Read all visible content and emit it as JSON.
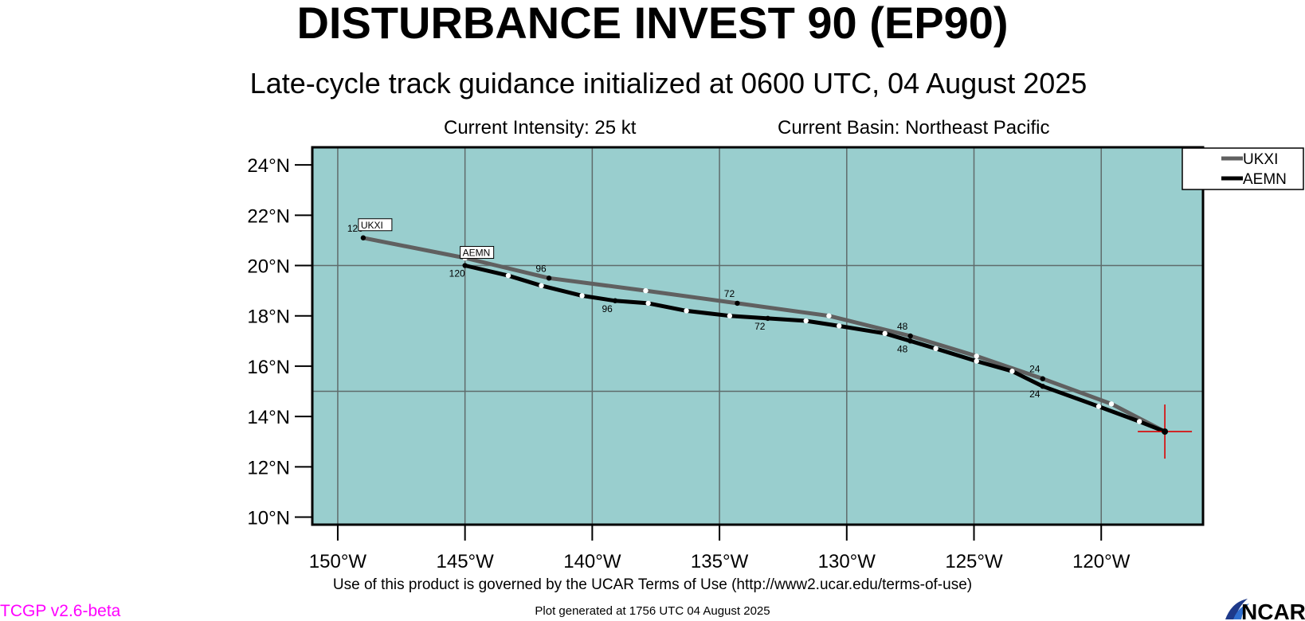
{
  "header": {
    "title": "DISTURBANCE INVEST 90 (EP90)",
    "subtitle": "Late-cycle track guidance initialized at 0600 UTC, 04 August 2025",
    "intensity": "Current Intensity: 25 kt",
    "basin": "Current Basin: Northeast Pacific"
  },
  "footer": {
    "terms": "Use of this product is governed by the UCAR Terms of Use (http://www2.ucar.edu/terms-of-use)",
    "generated": "Plot generated at 1756 UTC   04 August 2025",
    "version": "TCGP v2.6-beta",
    "logo_text": "NCAR"
  },
  "colors": {
    "ocean": "#99cece",
    "grid": "#5f6b6b",
    "ukxi": "#606060",
    "aemn": "#000000",
    "storm_marker": "#dd0000",
    "version_text": "#ff00ff"
  },
  "chart_data": {
    "type": "line",
    "xlabel": "",
    "ylabel": "",
    "xlim": [
      -151.0,
      -116.0
    ],
    "ylim": [
      9.7,
      24.7
    ],
    "x_ticks": [
      {
        "value": -150,
        "label": "150°W"
      },
      {
        "value": -145,
        "label": "145°W"
      },
      {
        "value": -140,
        "label": "140°W"
      },
      {
        "value": -135,
        "label": "135°W"
      },
      {
        "value": -130,
        "label": "130°W"
      },
      {
        "value": -125,
        "label": "125°W"
      },
      {
        "value": -120,
        "label": "120°W"
      }
    ],
    "y_ticks": [
      {
        "value": 10,
        "label": "10°N"
      },
      {
        "value": 12,
        "label": "12°N"
      },
      {
        "value": 14,
        "label": "14°N"
      },
      {
        "value": 16,
        "label": "16°N"
      },
      {
        "value": 18,
        "label": "18°N"
      },
      {
        "value": 20,
        "label": "20°N"
      },
      {
        "value": 22,
        "label": "22°N"
      },
      {
        "value": 24,
        "label": "24°N"
      }
    ],
    "grid_lon": [
      -150,
      -145,
      -140,
      -135,
      -130,
      -125,
      -120
    ],
    "grid_lat": [
      15,
      20
    ],
    "legend_position": "top-right",
    "storm_position": {
      "lon": -117.5,
      "lat": 13.4
    },
    "series": [
      {
        "name": "UKXI",
        "end_label": "UKXI",
        "color": "#606060",
        "points": [
          {
            "lon": -117.5,
            "lat": 13.4
          },
          {
            "lon": -119.6,
            "lat": 14.5
          },
          {
            "lon": -122.3,
            "lat": 15.5
          },
          {
            "lon": -124.9,
            "lat": 16.4
          },
          {
            "lon": -127.5,
            "lat": 17.2
          },
          {
            "lon": -130.7,
            "lat": 18.0
          },
          {
            "lon": -134.3,
            "lat": 18.5
          },
          {
            "lon": -137.9,
            "lat": 19.0
          },
          {
            "lon": -141.7,
            "lat": 19.5
          },
          {
            "lon": -145.0,
            "lat": 20.3
          },
          {
            "lon": -149.0,
            "lat": 21.1
          }
        ],
        "hour_labels": [
          {
            "text": "24",
            "lon": -122.3,
            "lat": 15.5
          },
          {
            "text": "48",
            "lon": -127.5,
            "lat": 17.2
          },
          {
            "text": "72",
            "lon": -134.3,
            "lat": 18.5
          },
          {
            "text": "96",
            "lon": -141.7,
            "lat": 19.5
          },
          {
            "text": "120",
            "lon": -149.0,
            "lat": 21.1
          }
        ]
      },
      {
        "name": "AEMN",
        "end_label": "AEMN",
        "color": "#000000",
        "points": [
          {
            "lon": -117.5,
            "lat": 13.4
          },
          {
            "lon": -118.5,
            "lat": 13.8
          },
          {
            "lon": -120.1,
            "lat": 14.4
          },
          {
            "lon": -122.3,
            "lat": 15.2
          },
          {
            "lon": -123.5,
            "lat": 15.8
          },
          {
            "lon": -124.9,
            "lat": 16.2
          },
          {
            "lon": -126.5,
            "lat": 16.7
          },
          {
            "lon": -127.5,
            "lat": 17.0
          },
          {
            "lon": -128.5,
            "lat": 17.3
          },
          {
            "lon": -130.3,
            "lat": 17.6
          },
          {
            "lon": -131.6,
            "lat": 17.8
          },
          {
            "lon": -133.1,
            "lat": 17.9
          },
          {
            "lon": -134.6,
            "lat": 18.0
          },
          {
            "lon": -136.3,
            "lat": 18.2
          },
          {
            "lon": -137.8,
            "lat": 18.5
          },
          {
            "lon": -139.1,
            "lat": 18.6
          },
          {
            "lon": -140.4,
            "lat": 18.8
          },
          {
            "lon": -142.0,
            "lat": 19.2
          },
          {
            "lon": -143.3,
            "lat": 19.6
          },
          {
            "lon": -145.0,
            "lat": 20.0
          }
        ],
        "hour_labels": [
          {
            "text": "24",
            "lon": -122.3,
            "lat": 15.2
          },
          {
            "text": "48",
            "lon": -127.5,
            "lat": 17.0
          },
          {
            "text": "72",
            "lon": -133.1,
            "lat": 17.9
          },
          {
            "text": "96",
            "lon": -139.1,
            "lat": 18.6
          },
          {
            "text": "120",
            "lon": -145.0,
            "lat": 20.0
          }
        ]
      }
    ]
  }
}
